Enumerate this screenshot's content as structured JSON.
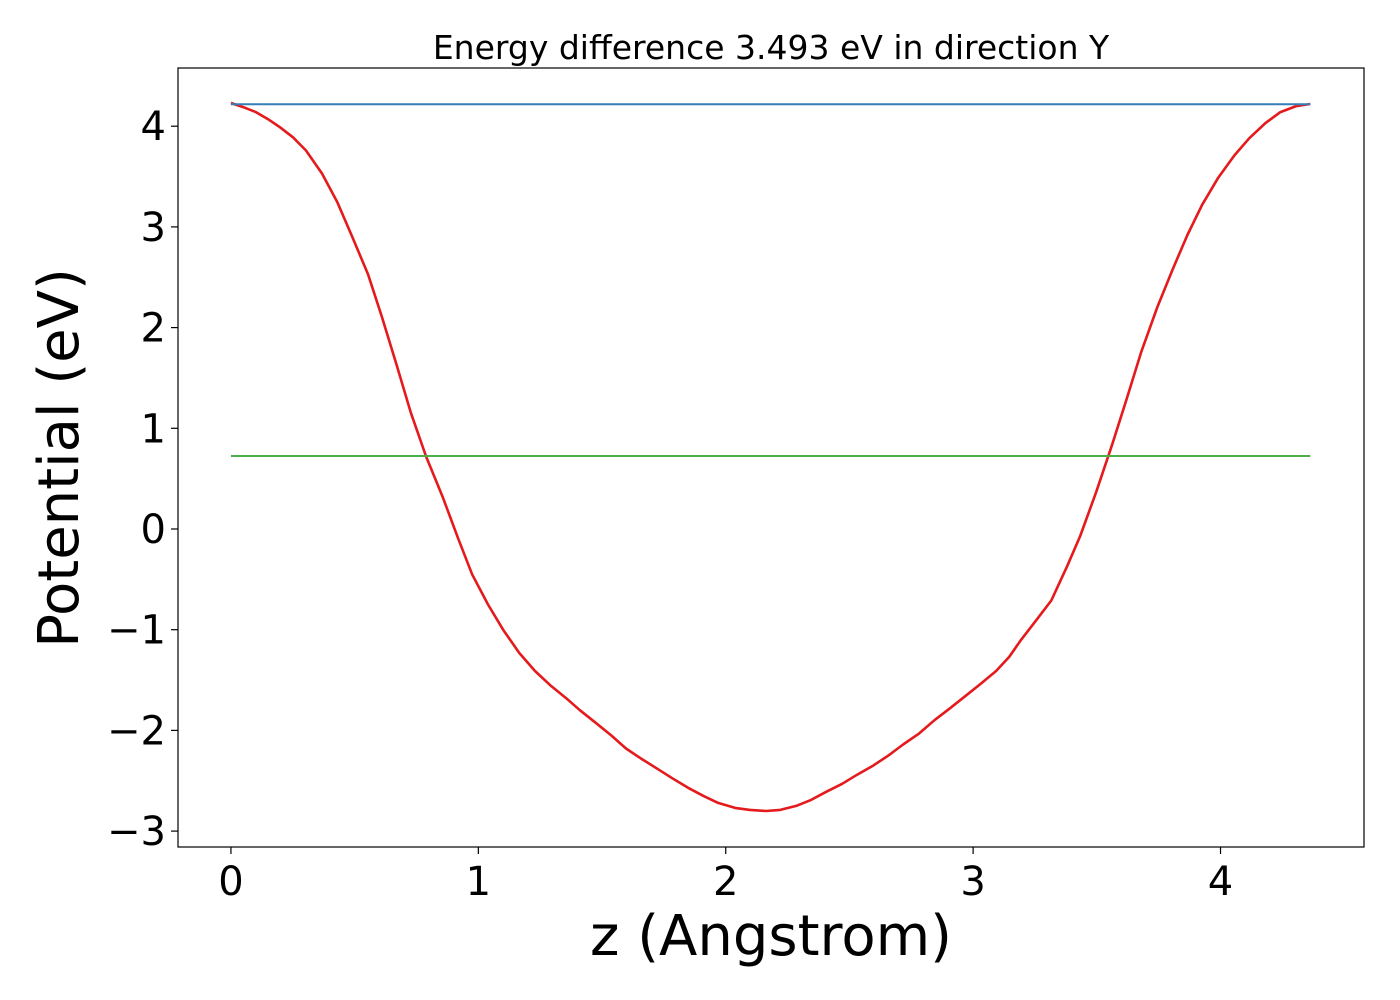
{
  "chart_data": {
    "type": "line",
    "title": "Energy difference 3.493 eV in direction Y",
    "xlabel": "z (Angstrom)",
    "ylabel": "Potential (eV)",
    "xlim": [
      -0.214,
      4.58
    ],
    "ylim": [
      -3.158,
      4.578
    ],
    "xticks": [
      0,
      1,
      2,
      3,
      4
    ],
    "xtick_labels": [
      "0",
      "1",
      "2",
      "3",
      "4"
    ],
    "yticks": [
      -3,
      -2,
      -1,
      0,
      1,
      2,
      3,
      4
    ],
    "ytick_labels": [
      "−3",
      "−2",
      "−1",
      "0",
      "1",
      "2",
      "3",
      "4"
    ],
    "grid": false,
    "series": [
      {
        "color": "#e41a1c",
        "style": "line",
        "x": [
          0,
          0.049,
          0.101,
          0.15,
          0.198,
          0.251,
          0.303,
          0.368,
          0.429,
          0.489,
          0.554,
          0.611,
          0.671,
          0.728,
          0.789,
          0.857,
          0.918,
          0.975,
          1.039,
          1.1,
          1.165,
          1.229,
          1.29,
          1.355,
          1.411,
          1.472,
          1.537,
          1.597,
          1.658,
          1.723,
          1.787,
          1.848,
          1.909,
          1.969,
          2.038,
          2.098,
          2.163,
          2.22,
          2.285,
          2.345,
          2.406,
          2.471,
          2.531,
          2.596,
          2.657,
          2.717,
          2.782,
          2.843,
          2.907,
          2.968,
          3.029,
          3.093,
          3.146,
          3.194,
          3.251,
          3.316,
          3.38,
          3.433,
          3.498,
          3.562,
          3.619,
          3.68,
          3.744,
          3.805,
          3.866,
          3.926,
          3.991,
          4.056,
          4.116,
          4.181,
          4.242,
          4.306,
          4.363
        ],
        "y": [
          4.23,
          4.19,
          4.14,
          4.07,
          3.99,
          3.89,
          3.76,
          3.53,
          3.25,
          2.91,
          2.53,
          2.1,
          1.62,
          1.15,
          0.72,
          0.31,
          -0.09,
          -0.45,
          -0.75,
          -1.0,
          -1.23,
          -1.41,
          -1.55,
          -1.68,
          -1.8,
          -1.92,
          -2.05,
          -2.18,
          -2.28,
          -2.38,
          -2.48,
          -2.57,
          -2.65,
          -2.72,
          -2.77,
          -2.79,
          -2.8,
          -2.79,
          -2.75,
          -2.69,
          -2.61,
          -2.53,
          -2.44,
          -2.35,
          -2.25,
          -2.14,
          -2.03,
          -1.9,
          -1.78,
          -1.66,
          -1.54,
          -1.41,
          -1.27,
          -1.1,
          -0.92,
          -0.71,
          -0.37,
          -0.07,
          0.37,
          0.84,
          1.28,
          1.76,
          2.2,
          2.57,
          2.92,
          3.22,
          3.49,
          3.71,
          3.88,
          4.03,
          4.14,
          4.2,
          4.22
        ]
      },
      {
        "color": "#377eb8",
        "style": "hline",
        "x": [
          0,
          4.363
        ],
        "y": [
          4.218,
          4.218
        ]
      },
      {
        "color": "#4daf4a",
        "style": "hline",
        "x": [
          0,
          4.363
        ],
        "y": [
          0.725,
          0.725
        ]
      }
    ]
  }
}
